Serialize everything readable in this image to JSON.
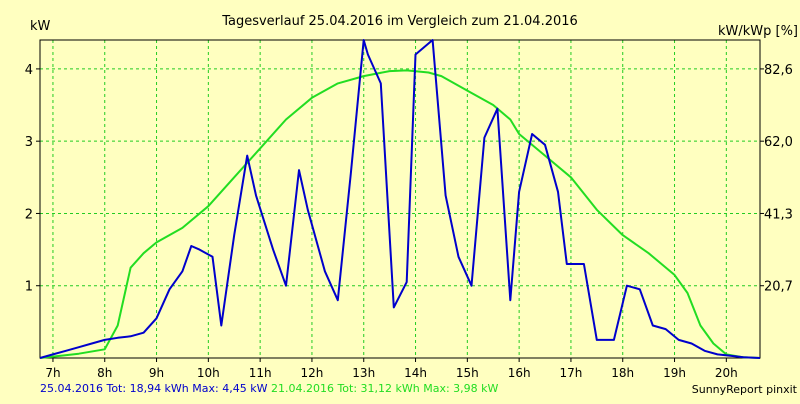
{
  "chart_data": {
    "type": "line",
    "title": "Tagesverlauf 25.04.2016 im Vergleich zum 21.04.2016",
    "ylabel_left": "kW",
    "ylabel_right": "kW/kWp [%]",
    "x_tick_labels": [
      "7h",
      "8h",
      "9h",
      "10h",
      "11h",
      "12h",
      "13h",
      "14h",
      "15h",
      "16h",
      "17h",
      "18h",
      "19h",
      "20h"
    ],
    "x_tick_values": [
      7,
      8,
      9,
      10,
      11,
      12,
      13,
      14,
      15,
      16,
      17,
      18,
      19,
      20
    ],
    "xlim": [
      6.75,
      20.65
    ],
    "y_tick_labels": [
      "1",
      "2",
      "3",
      "4"
    ],
    "y_tick_values": [
      1,
      2,
      3,
      4
    ],
    "ylim": [
      0,
      4.4
    ],
    "y2_tick_labels": [
      "20,7",
      "41,3",
      "62,0",
      "82,6"
    ],
    "grid": true,
    "series": [
      {
        "name": "25.04.2016",
        "color": "#0000cc",
        "x": [
          6.75,
          7.0,
          7.25,
          7.5,
          7.75,
          8.0,
          8.25,
          8.5,
          8.75,
          9.0,
          9.25,
          9.5,
          9.67,
          9.83,
          10.08,
          10.25,
          10.5,
          10.75,
          10.92,
          11.25,
          11.5,
          11.75,
          11.92,
          12.25,
          12.5,
          12.75,
          13.0,
          13.08,
          13.33,
          13.58,
          13.83,
          14.0,
          14.33,
          14.58,
          14.83,
          15.08,
          15.33,
          15.58,
          15.83,
          16.0,
          16.25,
          16.5,
          16.75,
          16.92,
          17.25,
          17.5,
          17.83,
          18.08,
          18.33,
          18.58,
          18.83,
          19.08,
          19.33,
          19.58,
          19.83,
          20.08,
          20.33,
          20.65
        ],
        "values": [
          0,
          0.05,
          0.1,
          0.15,
          0.2,
          0.25,
          0.28,
          0.3,
          0.35,
          0.55,
          0.95,
          1.2,
          1.55,
          1.5,
          1.4,
          0.45,
          1.7,
          2.8,
          2.25,
          1.5,
          1.0,
          2.6,
          2.05,
          1.2,
          0.8,
          2.55,
          4.4,
          4.2,
          3.8,
          0.7,
          1.05,
          4.2,
          4.4,
          2.25,
          1.4,
          1.0,
          3.05,
          3.45,
          0.8,
          2.3,
          3.1,
          2.95,
          2.3,
          1.3,
          1.3,
          0.25,
          0.25,
          1.0,
          0.95,
          0.45,
          0.4,
          0.25,
          0.2,
          0.1,
          0.05,
          0.03,
          0.01,
          0
        ]
      },
      {
        "name": "21.04.2016",
        "color": "#22dd22",
        "x": [
          6.75,
          7.0,
          7.5,
          8.0,
          8.25,
          8.5,
          8.75,
          9.0,
          9.5,
          10.0,
          10.5,
          11.0,
          11.5,
          12.0,
          12.5,
          13.0,
          13.5,
          13.83,
          14.25,
          14.5,
          15.0,
          15.5,
          15.83,
          16.0,
          16.5,
          17.0,
          17.5,
          18.0,
          18.5,
          19.0,
          19.25,
          19.5,
          19.75,
          20.0,
          20.33,
          20.65
        ],
        "values": [
          0,
          0.02,
          0.06,
          0.12,
          0.45,
          1.25,
          1.45,
          1.6,
          1.8,
          2.1,
          2.5,
          2.9,
          3.3,
          3.6,
          3.8,
          3.9,
          3.97,
          3.98,
          3.95,
          3.9,
          3.7,
          3.5,
          3.3,
          3.1,
          2.8,
          2.5,
          2.05,
          1.7,
          1.45,
          1.15,
          0.9,
          0.45,
          0.2,
          0.05,
          0.01,
          0
        ]
      }
    ],
    "footer_left_parts": [
      {
        "text": "25.04.2016 Tot: 18,94 kWh Max: 4,45 kW",
        "color": "#0000cc"
      },
      {
        "text": " 21.04.2016 Tot: 31,12 kWh Max: 3,98 kW",
        "color": "#22dd22"
      }
    ],
    "footer_right": "SunnyReport pinxit",
    "colors": {
      "background": "#ffffc0",
      "grid": "#22cc22",
      "frame": "#000000"
    }
  }
}
